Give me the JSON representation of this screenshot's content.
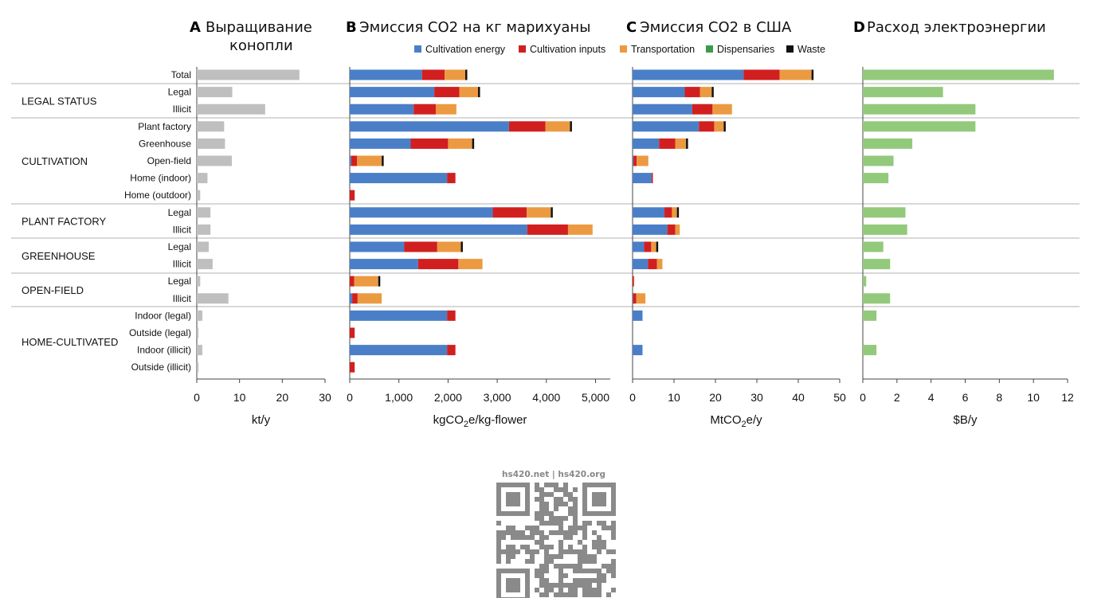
{
  "rows": [
    "Total",
    "Legal",
    "Illicit",
    "Plant factory",
    "Greenhouse",
    "Open-field",
    "Home (indoor)",
    "Home (outdoor)",
    "Legal",
    "Illicit",
    "Legal",
    "Illicit",
    "Legal",
    "Illicit",
    "Indoor (legal)",
    "Outside (legal)",
    "Indoor (illicit)",
    "Outside (illicit)"
  ],
  "groups": [
    {
      "label": "LEGAL STATUS",
      "rows": [
        1,
        2
      ]
    },
    {
      "label": "CULTIVATION",
      "rows": [
        3,
        7
      ]
    },
    {
      "label": "PLANT FACTORY",
      "rows": [
        8,
        9
      ]
    },
    {
      "label": "GREENHOUSE",
      "rows": [
        10,
        11
      ]
    },
    {
      "label": "OPEN-FIELD",
      "rows": [
        12,
        13
      ]
    },
    {
      "label": "HOME-CULTIVATED",
      "rows": [
        14,
        17
      ]
    }
  ],
  "legend": {
    "items": [
      {
        "label": "Cultivation energy",
        "color": "#4a7fc8"
      },
      {
        "label": "Cultivation inputs",
        "color": "#d11f1f"
      },
      {
        "label": "Transportation",
        "color": "#ec9a41"
      },
      {
        "label": "Dispensaries",
        "color": "#3c9a4b"
      },
      {
        "label": "Waste",
        "color": "#111111"
      }
    ]
  },
  "watermark": {
    "caption": "hs420.net | hs420.org",
    "icon": "qr-code-icon"
  },
  "chart_data": [
    {
      "type": "bar",
      "letter": "A",
      "title": "Выращивание конопли",
      "xlabel": "kt/y",
      "xlim": [
        0,
        30
      ],
      "ticks": [
        "0",
        "10",
        "20",
        "30"
      ],
      "color": "#bfbfbf",
      "values": [
        24,
        8.3,
        16,
        6.4,
        6.6,
        8.2,
        2.5,
        0.8,
        3.2,
        3.2,
        2.8,
        3.7,
        0.8,
        7.4,
        1.3,
        0.4,
        1.3,
        0.4
      ]
    },
    {
      "type": "bar",
      "stacked": true,
      "letter": "B",
      "title": "Эмиссия CO2 на кг марихуаны",
      "xlabel": "kgCO2e/kg-flower",
      "xlim": [
        0,
        5300
      ],
      "ticks": [
        "0",
        "1,000",
        "2,000",
        "3,000",
        "4,000",
        "5,000"
      ],
      "series": [
        {
          "name": "Cultivation energy",
          "values": [
            1470,
            1720,
            1300,
            3240,
            1240,
            30,
            1980,
            0,
            2910,
            3610,
            1110,
            1390,
            0,
            50,
            1980,
            0,
            1980,
            0
          ]
        },
        {
          "name": "Cultivation inputs",
          "values": [
            460,
            510,
            450,
            740,
            760,
            120,
            170,
            100,
            690,
            830,
            670,
            820,
            90,
            110,
            170,
            100,
            170,
            100
          ]
        },
        {
          "name": "Transportation",
          "values": [
            420,
            380,
            420,
            500,
            490,
            500,
            0,
            0,
            490,
            500,
            480,
            490,
            490,
            490,
            0,
            0,
            0,
            0
          ]
        },
        {
          "name": "Dispensaries",
          "values": [
            0,
            0,
            0,
            0,
            0,
            0,
            0,
            0,
            0,
            0,
            0,
            0,
            0,
            0,
            0,
            0,
            0,
            0
          ]
        },
        {
          "name": "Waste",
          "values": [
            20,
            25,
            0,
            25,
            25,
            20,
            0,
            0,
            40,
            0,
            40,
            0,
            40,
            0,
            0,
            0,
            0,
            0
          ]
        }
      ]
    },
    {
      "type": "bar",
      "stacked": true,
      "letter": "C",
      "title": "Эмиссия CO2 в США",
      "xlabel": "MtCO2e/y",
      "xlim": [
        0,
        50
      ],
      "ticks": [
        "0",
        "10",
        "20",
        "30",
        "40",
        "50"
      ],
      "series": [
        {
          "name": "Cultivation energy",
          "values": [
            26.8,
            12.6,
            14.4,
            16.0,
            6.4,
            0.2,
            4.6,
            0,
            7.7,
            8.4,
            2.8,
            3.7,
            0,
            0.1,
            2.4,
            0,
            2.4,
            0
          ]
        },
        {
          "name": "Cultivation inputs",
          "values": [
            8.7,
            3.7,
            4.9,
            3.7,
            3.9,
            0.8,
            0.3,
            0,
            1.8,
            1.9,
            1.7,
            2.2,
            0.3,
            0.8,
            0,
            0,
            0,
            0
          ]
        },
        {
          "name": "Transportation",
          "values": [
            7.7,
            2.8,
            4.7,
            2.3,
            2.6,
            2.8,
            0,
            0,
            1.2,
            1.1,
            1.2,
            1.3,
            0.1,
            2.2,
            0,
            0,
            0,
            0
          ]
        },
        {
          "name": "Dispensaries",
          "values": [
            0,
            0,
            0,
            0,
            0,
            0,
            0,
            0,
            0,
            0,
            0,
            0,
            0,
            0,
            0,
            0,
            0,
            0
          ]
        },
        {
          "name": "Waste",
          "values": [
            0.4,
            0.2,
            0,
            0.2,
            0.2,
            0,
            0,
            0,
            0.2,
            0,
            0.2,
            0,
            0,
            0,
            0,
            0,
            0,
            0
          ]
        }
      ]
    },
    {
      "type": "bar",
      "letter": "D",
      "title": "Расход электроэнергии",
      "xlabel": "$B/y",
      "xlim": [
        0,
        12
      ],
      "ticks": [
        "0",
        "2",
        "4",
        "6",
        "8",
        "10",
        "12"
      ],
      "color": "#93c97b",
      "values": [
        11.2,
        4.7,
        6.6,
        6.6,
        2.9,
        1.8,
        1.5,
        0,
        2.5,
        2.6,
        1.2,
        1.6,
        0.2,
        1.6,
        0.8,
        0,
        0.8,
        0
      ]
    }
  ]
}
